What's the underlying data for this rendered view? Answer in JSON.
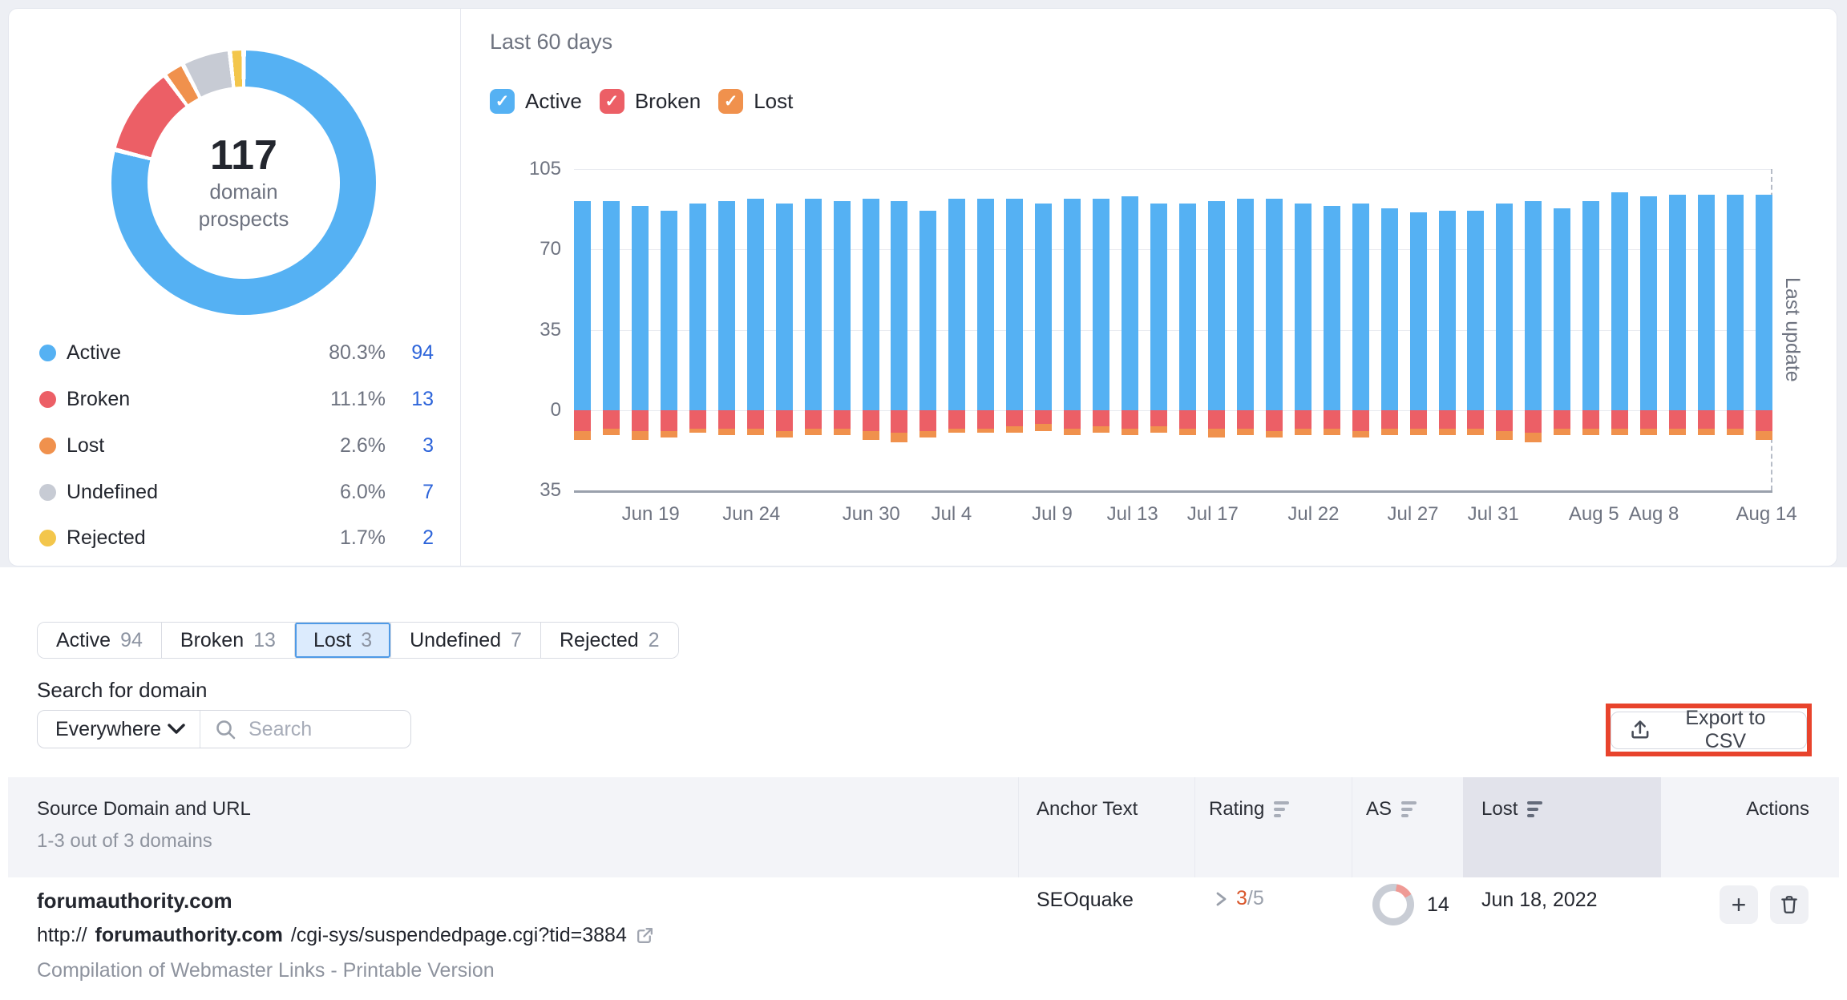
{
  "colors": {
    "active_blue": "#55b1f3",
    "broken_red": "#ec5f66",
    "lost_orange": "#f0914d",
    "undefined_gray": "#c7cbd4",
    "rejected_yellow": "#f3c64b",
    "link_blue": "#2e65da",
    "annotation_red": "#e8432c",
    "rating_orange": "#d9572c"
  },
  "overview": {
    "total_value": "117",
    "total_label_line1": "domain",
    "total_label_line2": "prospects",
    "legend": [
      {
        "label": "Active",
        "percent": "80.3%",
        "count": "94",
        "color": "#55b1f3"
      },
      {
        "label": "Broken",
        "percent": "11.1%",
        "count": "13",
        "color": "#ec5f66"
      },
      {
        "label": "Lost",
        "percent": "2.6%",
        "count": "3",
        "color": "#f0914d"
      },
      {
        "label": "Undefined",
        "percent": "6.0%",
        "count": "7",
        "color": "#c7cbd4"
      },
      {
        "label": "Rejected",
        "percent": "1.7%",
        "count": "2",
        "color": "#f3c64b"
      }
    ]
  },
  "trend": {
    "title": "Last 60 days",
    "filters": [
      {
        "label": "Active",
        "color": "#55b1f3",
        "checked": true
      },
      {
        "label": "Broken",
        "color": "#ec5f66",
        "checked": true
      },
      {
        "label": "Lost",
        "color": "#f0914d",
        "checked": true
      }
    ],
    "last_update_label": "Last update"
  },
  "chart_data": [
    {
      "type": "pie",
      "subtype": "donut",
      "title": "117 domain prospects",
      "labels": [
        "Active",
        "Broken",
        "Lost",
        "Undefined",
        "Rejected"
      ],
      "values": [
        94,
        13,
        3,
        7,
        2
      ],
      "percents": [
        80.3,
        11.1,
        2.6,
        6.0,
        1.7
      ],
      "colors": [
        "#55b1f3",
        "#ec5f66",
        "#f0914d",
        "#c7cbd4",
        "#f3c64b"
      ],
      "legend_position": "bottom-left"
    },
    {
      "type": "bar",
      "stacked": true,
      "title": "Last 60 days",
      "ylim": [
        -35,
        105
      ],
      "grid": true,
      "y_ticks": [
        105,
        70,
        35,
        0,
        -35
      ],
      "y_tick_labels": [
        "105",
        "70",
        "35",
        "0",
        "35"
      ],
      "x_labels": [
        {
          "label": "Jun 19",
          "pos": 0.064
        },
        {
          "label": "Jun 24",
          "pos": 0.148
        },
        {
          "label": "Jun 30",
          "pos": 0.248
        },
        {
          "label": "Jul 4",
          "pos": 0.315
        },
        {
          "label": "Jul 9",
          "pos": 0.399
        },
        {
          "label": "Jul 13",
          "pos": 0.466
        },
        {
          "label": "Jul 17",
          "pos": 0.533
        },
        {
          "label": "Jul 22",
          "pos": 0.617
        },
        {
          "label": "Jul 27",
          "pos": 0.7
        },
        {
          "label": "Jul 31",
          "pos": 0.767
        },
        {
          "label": "Aug 5",
          "pos": 0.851
        },
        {
          "label": "Aug 8",
          "pos": 0.901
        },
        {
          "label": "Aug 14",
          "pos": 0.995
        }
      ],
      "series": [
        {
          "name": "Active",
          "color": "#55b1f3",
          "values": [
            91,
            91,
            89,
            87,
            90,
            91,
            92,
            90,
            92,
            91,
            92,
            91,
            87,
            92,
            92,
            92,
            90,
            92,
            92,
            93,
            90,
            90,
            91,
            92,
            92,
            90,
            89,
            90,
            88,
            86,
            87,
            87,
            90,
            91,
            88,
            91,
            95,
            93,
            94,
            94,
            94,
            94
          ]
        },
        {
          "name": "Broken",
          "color": "#ec5f66",
          "values": [
            -9,
            -8,
            -9,
            -9,
            -8,
            -8,
            -8,
            -9,
            -8,
            -8,
            -9,
            -10,
            -9,
            -8,
            -8,
            -7,
            -6,
            -8,
            -7,
            -8,
            -7,
            -8,
            -8,
            -8,
            -9,
            -8,
            -8,
            -9,
            -8,
            -8,
            -8,
            -8,
            -9,
            -10,
            -8,
            -8,
            -8,
            -8,
            -8,
            -8,
            -8,
            -9
          ]
        },
        {
          "name": "Lost",
          "color": "#f0914d",
          "values": [
            -4,
            -3,
            -4,
            -3,
            -2,
            -3,
            -3,
            -3,
            -3,
            -3,
            -4,
            -4,
            -3,
            -2,
            -2,
            -3,
            -3,
            -3,
            -3,
            -3,
            -3,
            -3,
            -4,
            -3,
            -3,
            -3,
            -3,
            -3,
            -3,
            -3,
            -3,
            -3,
            -4,
            -4,
            -3,
            -3,
            -3,
            -3,
            -3,
            -3,
            -3,
            -4
          ]
        }
      ]
    }
  ],
  "tabs": [
    {
      "label": "Active",
      "count": "94",
      "selected": false
    },
    {
      "label": "Broken",
      "count": "13",
      "selected": false
    },
    {
      "label": "Lost",
      "count": "3",
      "selected": true
    },
    {
      "label": "Undefined",
      "count": "7",
      "selected": false
    },
    {
      "label": "Rejected",
      "count": "2",
      "selected": false
    }
  ],
  "search": {
    "label": "Search for domain",
    "scope_value": "Everywhere",
    "placeholder": "Search"
  },
  "export": {
    "label": "Export to CSV"
  },
  "table": {
    "header": {
      "col1_title": "Source Domain and URL",
      "col1_subtitle": "1-3 out of 3 domains",
      "anchor": "Anchor Text",
      "rating": "Rating",
      "as": "AS",
      "lost": "Lost",
      "actions": "Actions"
    },
    "row": {
      "domain": "forumauthority.com",
      "url_prefix": "http://",
      "url_domain": "forumauthority.com",
      "url_path": "/cgi-sys/suspendedpage.cgi?tid=3884",
      "page_title": "Compilation of Webmaster Links - Printable Version",
      "anchor": "SEOquake",
      "rating_value": "3",
      "rating_max": "/5",
      "as_value": "14",
      "lost_date": "Jun 18, 2022"
    }
  }
}
